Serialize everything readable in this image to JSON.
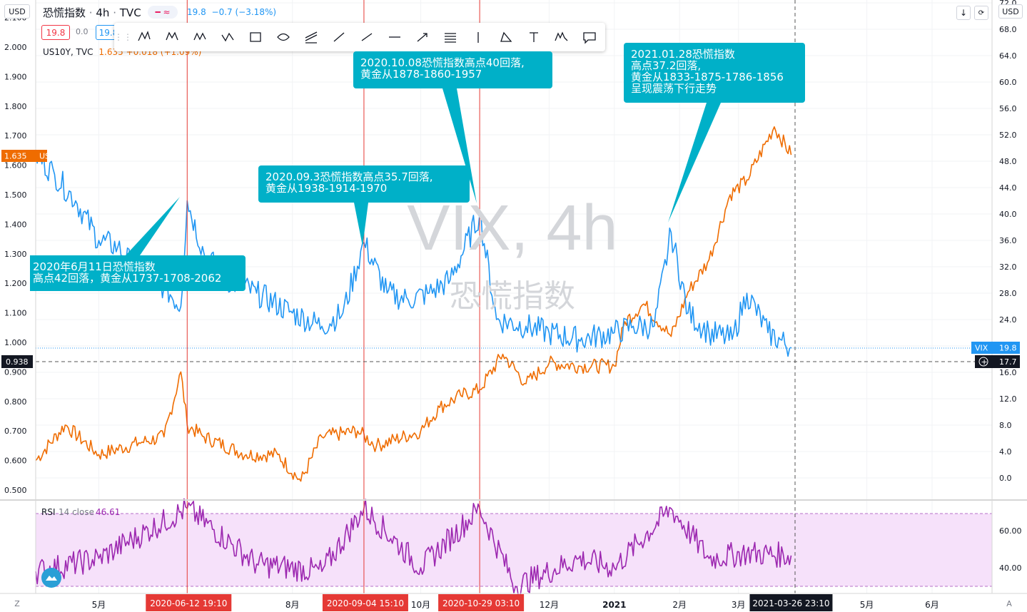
{
  "header": {
    "currency": "USD",
    "symbol_name": "恐慌指数",
    "interval": "4h",
    "exchange": "TVC",
    "last": "19.8",
    "change": "−0.7 (−3.18%)",
    "pill_value": "19.8",
    "pill_change": "0.0",
    "pill_blue": "19.8"
  },
  "legend_us10y": {
    "name": "US10Y, TVC",
    "value": "1.635",
    "change": "+0.018 (+1.09%)"
  },
  "right_axis_currency": "USD",
  "watermark": {
    "title": "VIX, 4h",
    "subtitle": "恐慌指数"
  },
  "left_axis": {
    "ticks": [
      "2.100",
      "2.000",
      "1.900",
      "1.800",
      "1.700",
      "1.600",
      "1.500",
      "1.400",
      "1.300",
      "1.200",
      "1.100",
      "1.000",
      "0.900",
      "0.800",
      "0.700",
      "0.600",
      "0.500"
    ]
  },
  "right_axis": {
    "ticks": [
      "72.0",
      "68.0",
      "64.0",
      "60.0",
      "56.0",
      "52.0",
      "48.0",
      "44.0",
      "40.0",
      "36.0",
      "32.0",
      "28.0",
      "24.0",
      "20.0",
      "16.0",
      "12.0",
      "8.0",
      "4.0",
      "0.0"
    ]
  },
  "rsi_axis": {
    "ticks": [
      "60.00",
      "40.00"
    ]
  },
  "x_axis": {
    "ticks": [
      "5月",
      "8月",
      "10月",
      "12月",
      "2021",
      "2月",
      "3月",
      "5月",
      "6月"
    ]
  },
  "price_labels": {
    "us10y": "1.635",
    "us10y_name": "US10Y",
    "vix_name": "VIX",
    "vix": "19.8",
    "crosshair_left": "0.938",
    "crosshair_right": "17.7"
  },
  "rsi_legend": {
    "name": "RSI",
    "params": "14 close",
    "value": "46.61"
  },
  "time_labels": [
    "2020-06-12   19:10",
    "2020-09-04   15:10",
    "2020-10-29   03:10",
    "2021-03-26   23:10"
  ],
  "annotations": [
    {
      "text": "2020年6月11日恐慌指数\n高点42回落，黄金从1737-1708-2062"
    },
    {
      "text": "2020.09.3恐慌指数高点35.7回落,\n黄金从1938-1914-1970"
    },
    {
      "text": "2020.10.08恐慌指数高点40回落,\n黄金从1878-1860-1957"
    },
    {
      "text": "2021.01.28恐慌指数\n高点37.2回落,\n黄金从1833-1875-1786-1856\n呈现震荡下行走势"
    }
  ],
  "corner_labels": {
    "bottom_left": "Z",
    "bottom_right": "A"
  },
  "colors": {
    "vix": "#2196f3",
    "us10y": "#ef6c00",
    "rsi": "#9c27b0",
    "rsi_band": "#f6e1fa",
    "marker": "#e53935",
    "annotation": "#00b0c8"
  },
  "chart_data": [
    {
      "type": "line",
      "title": "VIX, 4h",
      "x_format": "date",
      "series": [
        {
          "name": "VIX",
          "x": [
            "2020-04-01",
            "2020-04-10",
            "2020-04-20",
            "2020-05-01",
            "2020-05-10",
            "2020-05-20",
            "2020-06-01",
            "2020-06-09",
            "2020-06-12",
            "2020-06-20",
            "2020-07-01",
            "2020-07-15",
            "2020-08-01",
            "2020-08-15",
            "2020-08-25",
            "2020-09-04",
            "2020-09-15",
            "2020-09-25",
            "2020-10-05",
            "2020-10-15",
            "2020-10-29",
            "2020-11-06",
            "2020-11-20",
            "2020-12-01",
            "2020-12-15",
            "2021-01-01",
            "2021-01-10",
            "2021-01-20",
            "2021-01-28",
            "2021-02-05",
            "2021-02-15",
            "2021-02-26",
            "2021-03-05",
            "2021-03-15",
            "2021-03-26"
          ],
          "values": [
            49,
            46,
            42,
            36,
            35,
            31,
            29,
            26,
            42,
            34,
            30,
            28,
            25,
            23,
            25,
            35.7,
            28,
            27,
            28,
            30,
            40,
            24,
            23,
            22,
            21,
            22,
            23,
            23,
            37.2,
            25,
            22,
            21,
            28,
            22,
            19.8
          ]
        }
      ],
      "ylim": [
        -3.5,
        74
      ]
    },
    {
      "type": "line",
      "title": "US10Y, TVC",
      "x_format": "date",
      "series": [
        {
          "name": "US10Y",
          "x": [
            "2020-04-01",
            "2020-04-15",
            "2020-05-01",
            "2020-05-20",
            "2020-06-01",
            "2020-06-09",
            "2020-06-12",
            "2020-06-20",
            "2020-07-10",
            "2020-07-25",
            "2020-08-05",
            "2020-08-15",
            "2020-09-01",
            "2020-09-10",
            "2020-10-01",
            "2020-10-10",
            "2020-10-20",
            "2020-10-29",
            "2020-11-09",
            "2020-11-20",
            "2020-12-01",
            "2020-12-15",
            "2021-01-01",
            "2021-01-06",
            "2021-01-15",
            "2021-01-28",
            "2021-02-05",
            "2021-02-15",
            "2021-02-25",
            "2021-03-05",
            "2021-03-18",
            "2021-03-26"
          ],
          "values": [
            0.6,
            0.72,
            0.62,
            0.66,
            0.68,
            0.9,
            0.72,
            0.68,
            0.62,
            0.62,
            0.53,
            0.68,
            0.7,
            0.65,
            0.7,
            0.78,
            0.82,
            0.84,
            0.96,
            0.86,
            0.93,
            0.92,
            0.92,
            1.07,
            1.13,
            1.02,
            1.17,
            1.28,
            1.5,
            1.55,
            1.73,
            1.635
          ]
        }
      ],
      "ylim": [
        0.47,
        2.12
      ]
    },
    {
      "type": "line",
      "title": "RSI 14 close",
      "x_format": "date",
      "series": [
        {
          "name": "RSI",
          "x": [
            "2020-04-01",
            "2020-05-01",
            "2020-06-12",
            "2020-07-15",
            "2020-08-15",
            "2020-09-04",
            "2020-10-01",
            "2020-10-29",
            "2020-11-15",
            "2020-12-15",
            "2021-01-01",
            "2021-01-28",
            "2021-02-15",
            "2021-03-05",
            "2021-03-26"
          ],
          "values": [
            38,
            45,
            72,
            42,
            38,
            72,
            40,
            72,
            30,
            45,
            40,
            72,
            45,
            48,
            46.61
          ]
        }
      ],
      "ylim": [
        27,
        74
      ]
    }
  ]
}
